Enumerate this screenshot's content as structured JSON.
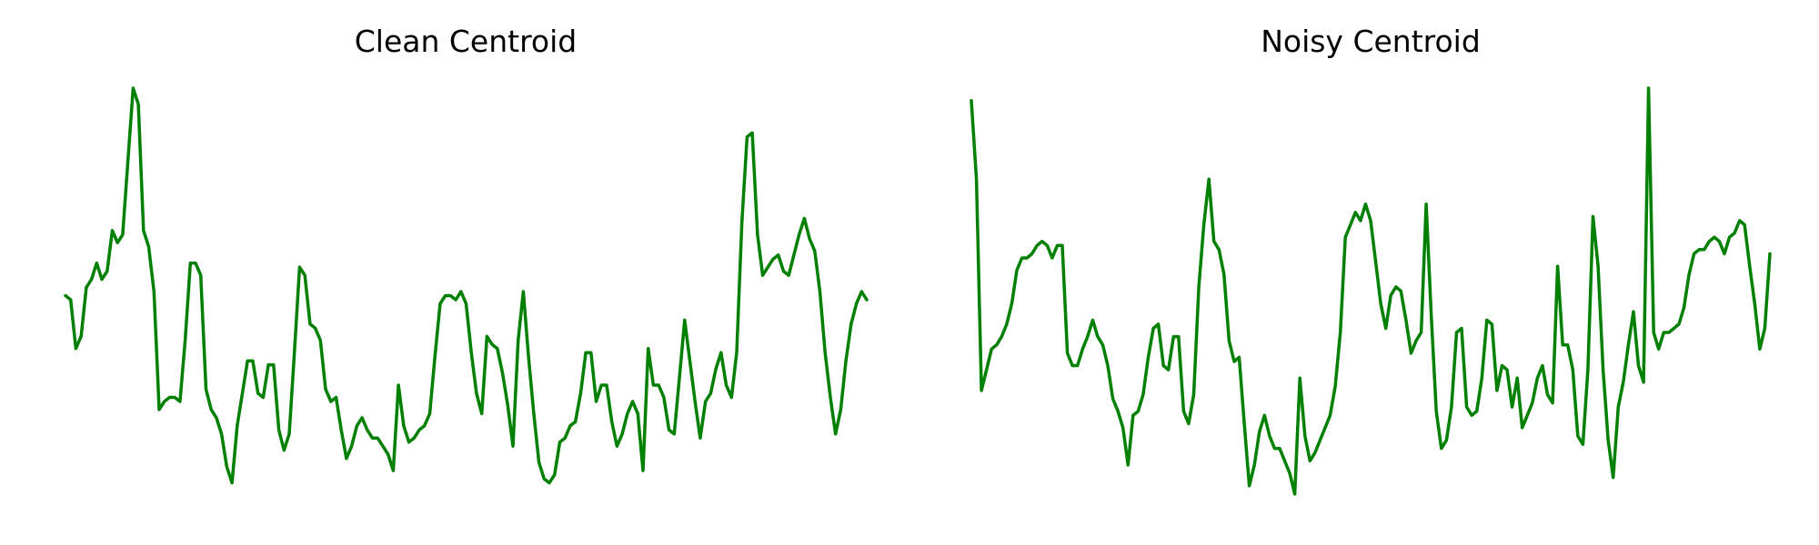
{
  "chart_data": [
    {
      "type": "line",
      "title": "Clean Centroid",
      "xlabel": "",
      "ylabel": "",
      "ylim": [
        0,
        100
      ],
      "grid": false,
      "axes_visible": false,
      "line_color": "#008000",
      "series": [
        {
          "values": [
            49,
            48,
            36,
            39,
            51,
            53,
            57,
            53,
            55,
            65,
            62,
            64,
            82,
            100,
            96,
            65,
            61,
            50,
            21,
            23,
            24,
            24,
            23,
            38,
            57,
            57,
            54,
            26,
            21,
            19,
            15,
            7,
            3,
            17,
            25,
            33,
            33,
            25,
            24,
            32,
            32,
            16,
            11,
            15,
            35,
            56,
            54,
            42,
            41,
            38,
            26,
            23,
            24,
            16,
            9,
            12,
            17,
            19,
            16,
            14,
            14,
            12,
            10,
            6,
            27,
            17,
            13,
            14,
            16,
            17,
            20,
            34,
            47,
            49,
            49,
            48,
            50,
            47,
            35,
            25,
            20,
            39,
            37,
            36,
            30,
            22,
            12,
            38,
            50,
            34,
            20,
            8,
            4,
            3,
            5,
            13,
            14,
            17,
            18,
            25,
            35,
            35,
            23,
            27,
            27,
            18,
            12,
            15,
            20,
            23,
            20,
            6,
            36,
            27,
            27,
            24,
            16,
            15,
            29,
            43,
            33,
            23,
            14,
            23,
            25,
            31,
            35,
            27,
            24,
            35,
            67,
            88,
            89,
            64,
            54,
            56,
            58,
            59,
            55,
            54,
            59,
            64,
            68,
            63,
            60,
            50,
            35,
            24,
            15,
            21,
            33,
            42,
            47,
            50,
            48
          ]
        }
      ]
    },
    {
      "type": "line",
      "title": "Noisy Centroid",
      "xlabel": "",
      "ylabel": "",
      "ylim": [
        0,
        100
      ],
      "grid": false,
      "axes_visible": false,
      "line_color": "#008000",
      "series": [
        {
          "values": [
            97,
            78,
            27,
            32,
            37,
            38,
            40,
            43,
            48,
            56,
            59,
            59,
            60,
            62,
            63,
            62,
            59,
            62,
            62,
            36,
            33,
            33,
            37,
            40,
            44,
            40,
            38,
            33,
            25,
            22,
            18,
            9,
            21,
            22,
            26,
            35,
            42,
            43,
            33,
            32,
            40,
            40,
            22,
            19,
            26,
            52,
            67,
            78,
            63,
            61,
            55,
            39,
            34,
            35,
            19,
            4,
            9,
            17,
            21,
            16,
            13,
            13,
            10,
            7,
            2,
            30,
            16,
            10,
            12,
            15,
            18,
            21,
            28,
            41,
            64,
            67,
            70,
            68,
            72,
            68,
            58,
            48,
            42,
            50,
            52,
            51,
            44,
            36,
            39,
            41,
            72,
            45,
            22,
            13,
            15,
            23,
            41,
            42,
            23,
            21,
            22,
            30,
            44,
            43,
            27,
            33,
            32,
            23,
            30,
            18,
            21,
            24,
            30,
            33,
            26,
            24,
            57,
            38,
            38,
            32,
            16,
            14,
            32,
            69,
            57,
            32,
            15,
            6,
            23,
            29,
            38,
            46,
            33,
            29,
            100,
            41,
            37,
            41,
            41,
            42,
            43,
            47,
            55,
            60,
            61,
            61,
            63,
            64,
            63,
            60,
            64,
            65,
            68,
            67,
            57,
            48,
            37,
            42,
            60
          ]
        }
      ]
    }
  ]
}
